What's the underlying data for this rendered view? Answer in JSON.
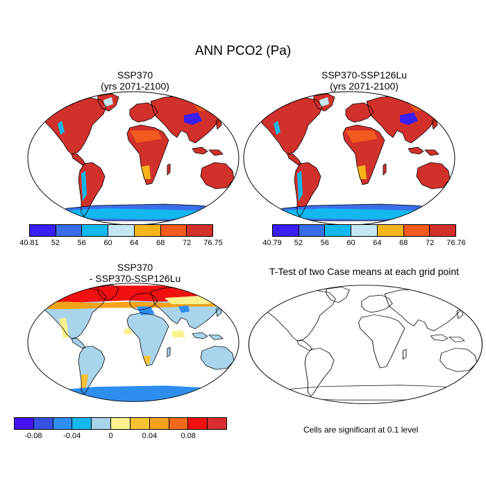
{
  "title": "ANN PCO2 (Pa)",
  "panels": [
    {
      "title1": "SSP370",
      "title2": "(yrs 2071-2100)"
    },
    {
      "title1": "SSP370-SSP126Lu",
      "title2": "(yrs 2071-2100)"
    },
    {
      "title1": "SSP370",
      "title2": "- SSP370-SSP126Lu"
    },
    {
      "title1": "T-Test of two Case means at each grid point",
      "title2": ""
    }
  ],
  "colorbars": [
    {
      "colors": [
        "#3b1ef2",
        "#3a6ee8",
        "#12b8ee",
        "#c2e6f2",
        "#f5b41a",
        "#f25a1e",
        "#d2302a"
      ],
      "labels": [
        "40.81",
        "52",
        "56",
        "60",
        "64",
        "68",
        "72",
        "76.75"
      ]
    },
    {
      "colors": [
        "#3b1ef2",
        "#3a6ee8",
        "#12b8ee",
        "#c2e6f2",
        "#f5b41a",
        "#f25a1e",
        "#d2302a"
      ],
      "labels": [
        "40.79",
        "52",
        "56",
        "60",
        "64",
        "68",
        "72",
        "76.76"
      ]
    },
    {
      "colors": [
        "#4514f5",
        "#3552e5",
        "#2d8ef0",
        "#14b8ee",
        "#a8d4ec",
        "#fbf28e",
        "#f7c232",
        "#f5a21a",
        "#f26a1a",
        "#f20f0f",
        "#d82e2e"
      ],
      "labels": [
        "-0.08",
        "-0.04",
        "0",
        "0.04",
        "0.08"
      ]
    }
  ],
  "note": "Cells are significant at 0.1 level"
}
